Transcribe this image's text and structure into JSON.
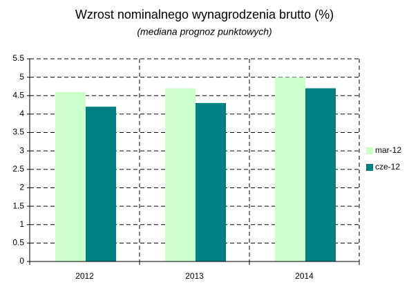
{
  "chart_data": {
    "type": "bar",
    "title": "Wzrost nominalnego wynagrodzenia brutto (%)",
    "subtitle": "(mediana prognoz punktowych)",
    "categories": [
      "2012",
      "2013",
      "2014"
    ],
    "series": [
      {
        "name": "mar-12",
        "color": "#ccffcc",
        "values": [
          4.6,
          4.7,
          5.0
        ]
      },
      {
        "name": "cze-12",
        "color": "#008080",
        "values": [
          4.2,
          4.3,
          4.7
        ]
      }
    ],
    "ylim": [
      0,
      5.5
    ],
    "yticks": [
      0,
      0.5,
      1,
      1.5,
      2,
      2.5,
      3,
      3.5,
      4,
      4.5,
      5,
      5.5
    ],
    "grid": true,
    "legend": "right"
  }
}
